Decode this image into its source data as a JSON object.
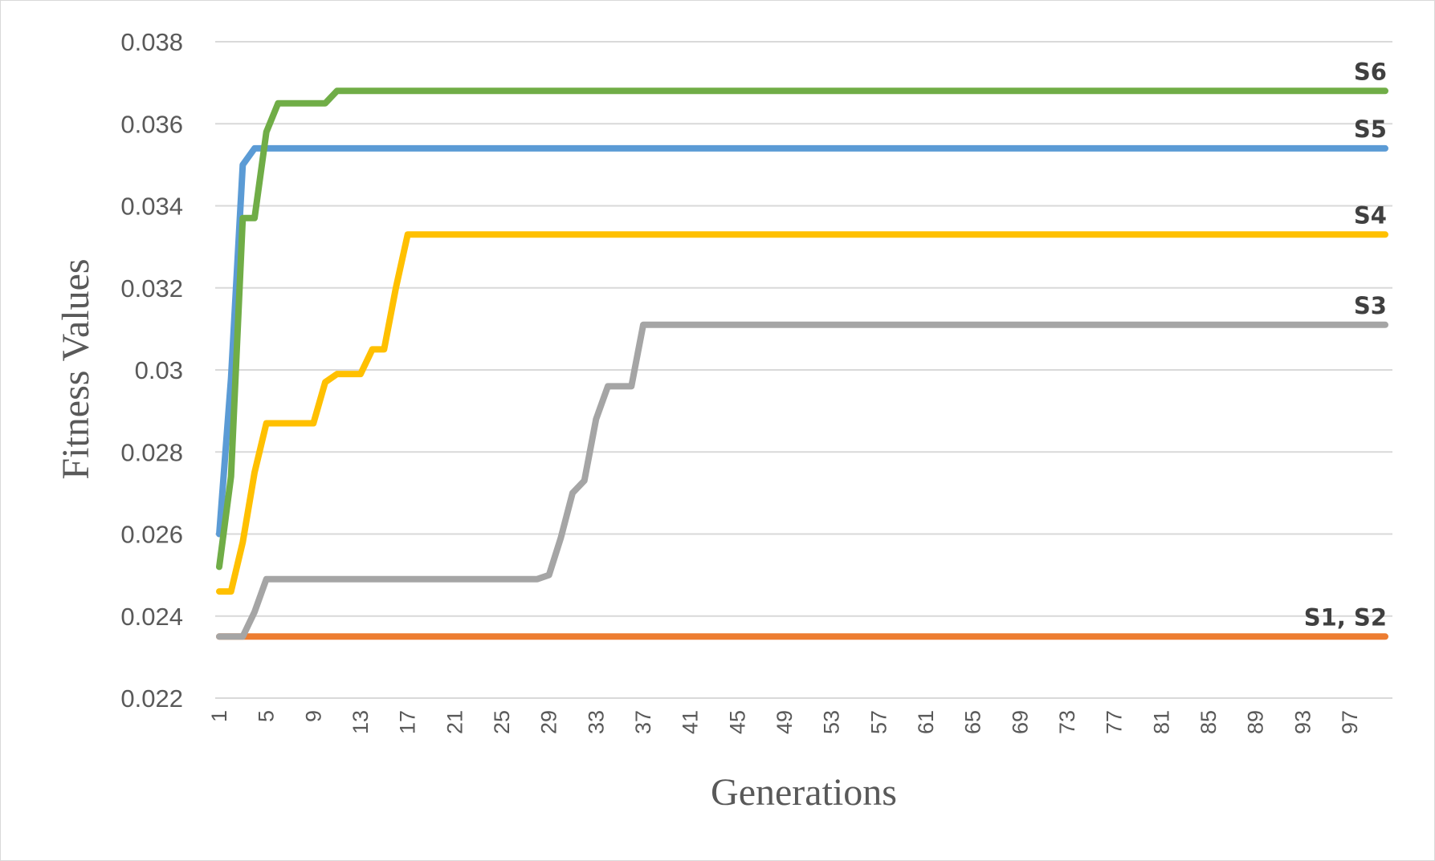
{
  "chart_data": {
    "type": "line",
    "title": "",
    "xlabel": "Generations",
    "ylabel": "Fitness Values",
    "ylim": [
      0.022,
      0.038
    ],
    "xlim": [
      1,
      100
    ],
    "grid": true,
    "legend": "none",
    "y_ticks": [
      "0.038",
      "0.036",
      "0.034",
      "0.032",
      "0.03",
      "0.028",
      "0.026",
      "0.024",
      "0.022"
    ],
    "x_ticks": [
      "1",
      "5",
      "9",
      "13",
      "17",
      "21",
      "25",
      "29",
      "33",
      "37",
      "41",
      "45",
      "49",
      "53",
      "57",
      "61",
      "65",
      "69",
      "73",
      "77",
      "81",
      "85",
      "89",
      "93",
      "97"
    ],
    "series": [
      {
        "name": "S1, S2",
        "color": "#ED7D31",
        "points": [
          [
            1,
            0.0235
          ],
          [
            100,
            0.0235
          ]
        ]
      },
      {
        "name": "S3",
        "color": "#A5A5A5",
        "points": [
          [
            1,
            0.0235
          ],
          [
            3,
            0.0235
          ],
          [
            4,
            0.0241
          ],
          [
            5,
            0.0249
          ],
          [
            28,
            0.0249
          ],
          [
            29,
            0.025
          ],
          [
            30,
            0.0259
          ],
          [
            31,
            0.027
          ],
          [
            32,
            0.0273
          ],
          [
            33,
            0.0288
          ],
          [
            34,
            0.0296
          ],
          [
            36,
            0.0296
          ],
          [
            37,
            0.0311
          ],
          [
            100,
            0.0311
          ]
        ]
      },
      {
        "name": "S4",
        "color": "#FFC000",
        "points": [
          [
            1,
            0.0246
          ],
          [
            2,
            0.0246
          ],
          [
            3,
            0.0258
          ],
          [
            4,
            0.0275
          ],
          [
            5,
            0.0287
          ],
          [
            9,
            0.0287
          ],
          [
            10,
            0.0297
          ],
          [
            11,
            0.0299
          ],
          [
            13,
            0.0299
          ],
          [
            14,
            0.0305
          ],
          [
            15,
            0.0305
          ],
          [
            16,
            0.032
          ],
          [
            17,
            0.0333
          ],
          [
            100,
            0.0333
          ]
        ]
      },
      {
        "name": "S5",
        "color": "#5B9BD5",
        "points": [
          [
            1,
            0.026
          ],
          [
            2,
            0.0298
          ],
          [
            3,
            0.035
          ],
          [
            4,
            0.0354
          ],
          [
            100,
            0.0354
          ]
        ]
      },
      {
        "name": "S6",
        "color": "#70AD47",
        "points": [
          [
            1,
            0.0252
          ],
          [
            2,
            0.0274
          ],
          [
            3,
            0.0337
          ],
          [
            4,
            0.0337
          ],
          [
            5,
            0.0358
          ],
          [
            6,
            0.0365
          ],
          [
            10,
            0.0365
          ],
          [
            11,
            0.0368
          ],
          [
            100,
            0.0368
          ]
        ]
      }
    ]
  }
}
